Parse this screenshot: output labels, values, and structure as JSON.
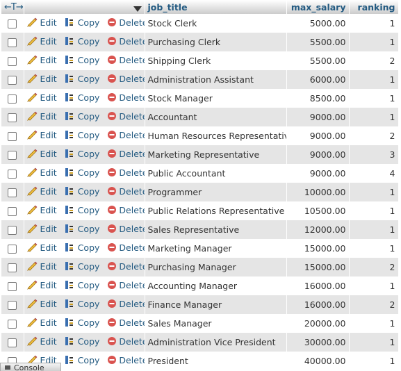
{
  "header": {
    "nav_glyph": "←T→",
    "columns": [
      "job_title",
      "max_salary",
      "ranking"
    ]
  },
  "actions": {
    "edit": "Edit",
    "copy": "Copy",
    "delete": "Delete"
  },
  "rows": [
    {
      "job_title": "Stock Clerk",
      "max_salary": "5000.00",
      "ranking": "1"
    },
    {
      "job_title": "Purchasing Clerk",
      "max_salary": "5500.00",
      "ranking": "1"
    },
    {
      "job_title": "Shipping Clerk",
      "max_salary": "5500.00",
      "ranking": "2"
    },
    {
      "job_title": "Administration Assistant",
      "max_salary": "6000.00",
      "ranking": "1"
    },
    {
      "job_title": "Stock Manager",
      "max_salary": "8500.00",
      "ranking": "1"
    },
    {
      "job_title": "Accountant",
      "max_salary": "9000.00",
      "ranking": "1"
    },
    {
      "job_title": "Human Resources Representative",
      "max_salary": "9000.00",
      "ranking": "2"
    },
    {
      "job_title": "Marketing Representative",
      "max_salary": "9000.00",
      "ranking": "3"
    },
    {
      "job_title": "Public Accountant",
      "max_salary": "9000.00",
      "ranking": "4"
    },
    {
      "job_title": "Programmer",
      "max_salary": "10000.00",
      "ranking": "1"
    },
    {
      "job_title": "Public Relations Representative",
      "max_salary": "10500.00",
      "ranking": "1"
    },
    {
      "job_title": "Sales Representative",
      "max_salary": "12000.00",
      "ranking": "1"
    },
    {
      "job_title": "Marketing Manager",
      "max_salary": "15000.00",
      "ranking": "1"
    },
    {
      "job_title": "Purchasing Manager",
      "max_salary": "15000.00",
      "ranking": "2"
    },
    {
      "job_title": "Accounting Manager",
      "max_salary": "16000.00",
      "ranking": "1"
    },
    {
      "job_title": "Finance Manager",
      "max_salary": "16000.00",
      "ranking": "2"
    },
    {
      "job_title": "Sales Manager",
      "max_salary": "20000.00",
      "ranking": "1"
    },
    {
      "job_title": "Administration Vice President",
      "max_salary": "30000.00",
      "ranking": "1"
    },
    {
      "job_title": "President",
      "max_salary": "40000.00",
      "ranking": "1"
    }
  ],
  "console": {
    "label": "Console"
  },
  "icons": {
    "edit": "pencil-icon",
    "copy": "copy-icon",
    "delete": "delete-icon",
    "sort": "sort-arrow-icon"
  },
  "colors": {
    "link": "#235a81",
    "row_alt": "#e5e5e5",
    "delete": "#d9534f"
  }
}
